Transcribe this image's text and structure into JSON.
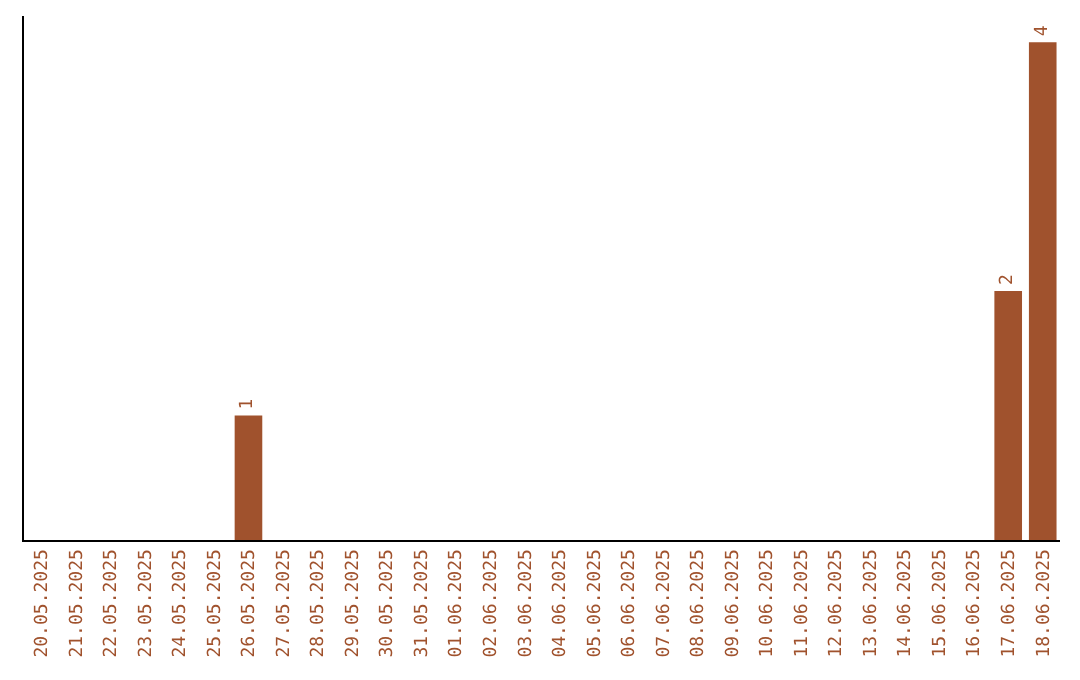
{
  "chart_data": {
    "type": "bar",
    "categories": [
      "20.05.2025",
      "21.05.2025",
      "22.05.2025",
      "23.05.2025",
      "24.05.2025",
      "25.05.2025",
      "26.05.2025",
      "27.05.2025",
      "28.05.2025",
      "29.05.2025",
      "30.05.2025",
      "31.05.2025",
      "01.06.2025",
      "02.06.2025",
      "03.06.2025",
      "04.06.2025",
      "05.06.2025",
      "06.06.2025",
      "07.06.2025",
      "08.06.2025",
      "09.06.2025",
      "10.06.2025",
      "11.06.2025",
      "12.06.2025",
      "13.06.2025",
      "14.06.2025",
      "15.06.2025",
      "16.06.2025",
      "17.06.2025",
      "18.06.2025"
    ],
    "values": [
      0,
      0,
      0,
      0,
      0,
      0,
      1,
      0,
      0,
      0,
      0,
      0,
      0,
      0,
      0,
      0,
      0,
      0,
      0,
      0,
      0,
      0,
      0,
      0,
      0,
      0,
      0,
      0,
      2,
      4
    ],
    "value_labels": [
      null,
      null,
      null,
      null,
      null,
      null,
      "1",
      null,
      null,
      null,
      null,
      null,
      null,
      null,
      null,
      null,
      null,
      null,
      null,
      null,
      null,
      null,
      null,
      null,
      null,
      null,
      null,
      null,
      "2",
      "4"
    ],
    "color": "#a0522d",
    "tick_labels": "x",
    "legend": false
  }
}
